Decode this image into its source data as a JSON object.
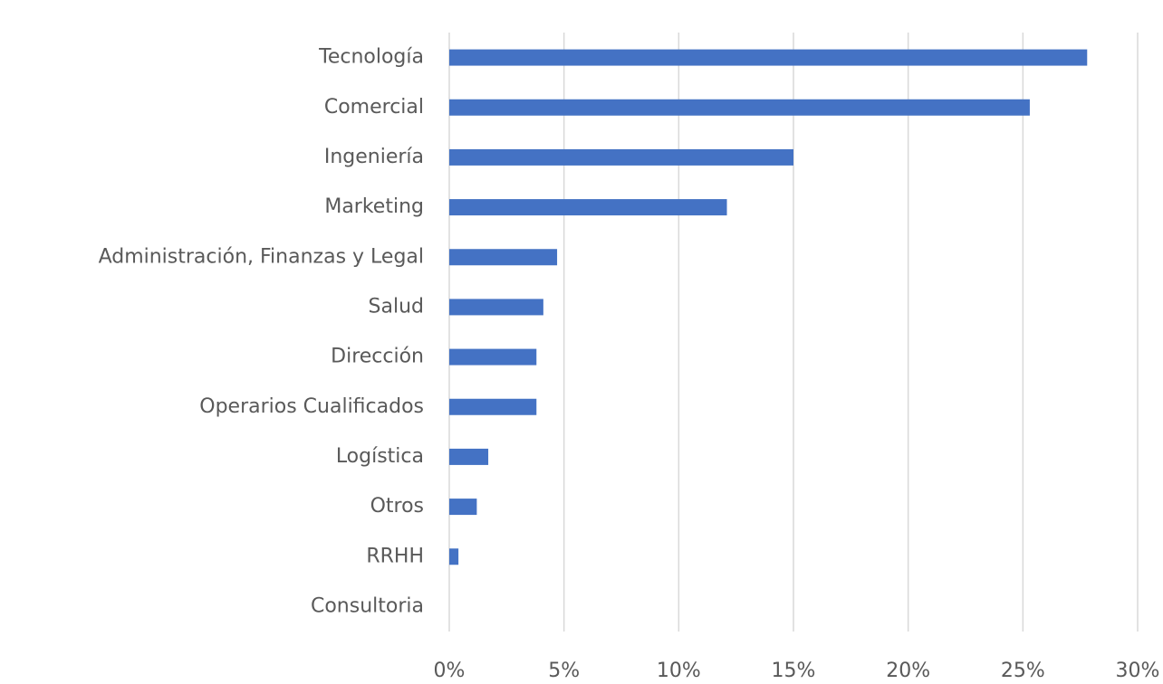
{
  "chart_data": {
    "type": "bar",
    "orientation": "horizontal",
    "categories": [
      "Tecnología",
      "Comercial",
      "Ingeniería",
      "Marketing",
      "Administración, Finanzas y Legal",
      "Salud",
      "Dirección",
      "Operarios Cualificados",
      "Logística",
      "Otros",
      "RRHH",
      "Consultoria"
    ],
    "values": [
      27.8,
      25.3,
      15.0,
      12.1,
      4.7,
      4.1,
      3.8,
      3.8,
      1.7,
      1.2,
      0.4,
      0
    ],
    "color": "#4472c4",
    "xlim": [
      0,
      30
    ],
    "xticks": [
      {
        "value": 0,
        "label": "0%"
      },
      {
        "value": 5,
        "label": "5%"
      },
      {
        "value": 10,
        "label": "10%"
      },
      {
        "value": 15,
        "label": "15%"
      },
      {
        "value": 20,
        "label": "20%"
      },
      {
        "value": 25,
        "label": "25%"
      },
      {
        "value": 30,
        "label": "30%"
      }
    ],
    "grid": true
  }
}
